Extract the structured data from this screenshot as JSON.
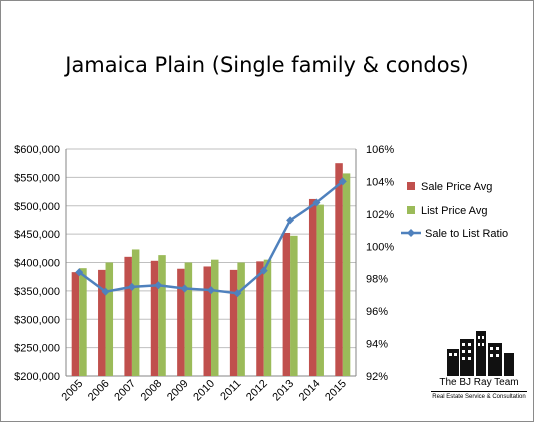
{
  "chart_data": {
    "type": "bar",
    "title": "Jamaica Plain (Single family & condos)",
    "categories": [
      "2005",
      "2006",
      "2007",
      "2008",
      "2009",
      "2010",
      "2011",
      "2012",
      "2013",
      "2014",
      "2015"
    ],
    "series": [
      {
        "name": "Sale Price Avg",
        "type": "bar",
        "axis": "left",
        "color": "#c0504d",
        "values": [
          383000,
          387000,
          410000,
          403000,
          389000,
          393000,
          387000,
          402000,
          452000,
          512000,
          575000
        ]
      },
      {
        "name": "List Price Avg",
        "type": "bar",
        "axis": "left",
        "color": "#9bbb59",
        "values": [
          390000,
          400000,
          423000,
          413000,
          400000,
          405000,
          400000,
          405000,
          447000,
          502000,
          557000
        ]
      },
      {
        "name": "Sale to List Ratio",
        "type": "line",
        "axis": "right",
        "color": "#4f81bd",
        "values": [
          98.4,
          97.2,
          97.5,
          97.6,
          97.4,
          97.3,
          97.1,
          98.5,
          101.6,
          102.7,
          104.0
        ]
      }
    ],
    "y_left": {
      "min": 200000,
      "max": 600000,
      "step": 50000,
      "tick_labels": [
        "$200,000",
        "$250,000",
        "$300,000",
        "$350,000",
        "$400,000",
        "$450,000",
        "$500,000",
        "$550,000",
        "$600,000"
      ]
    },
    "y_right": {
      "min": 92,
      "max": 106,
      "step": 2,
      "tick_labels": [
        "92%",
        "94%",
        "96%",
        "98%",
        "100%",
        "102%",
        "104%",
        "106%"
      ]
    },
    "grid": "horizontal",
    "legend_position": "right"
  },
  "logo": {
    "name": "The BJ Ray Team",
    "tagline": "Real Estate Service & Consultation"
  }
}
